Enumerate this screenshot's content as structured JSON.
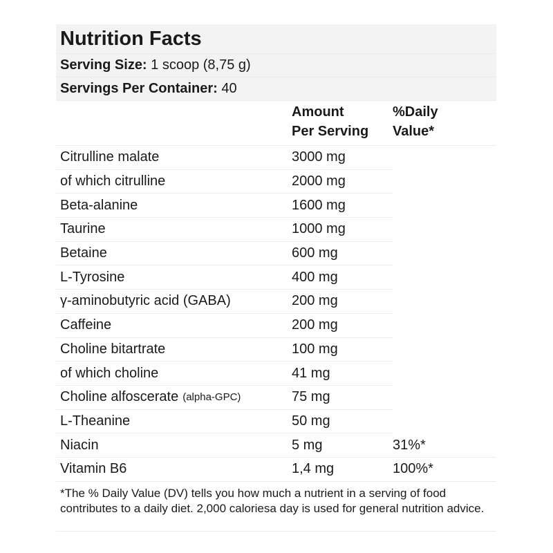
{
  "title": "Nutrition Facts",
  "serving_size": {
    "label": "Serving Size:",
    "value": " 1 scoop (8,75 g)"
  },
  "servings_per_container": {
    "label": "Servings Per Container:",
    "value": " 40"
  },
  "columns": {
    "amount_line1": "Amount",
    "amount_line2": "Per Serving",
    "dv_line1": "%Daily",
    "dv_line2": "Value*"
  },
  "rows": [
    {
      "name": "Citrulline malate",
      "amount": "3000 mg",
      "dv": ""
    },
    {
      "name": "of which citrulline",
      "amount": "2000 mg",
      "dv": ""
    },
    {
      "name": "Beta-alanine",
      "amount": "1600 mg",
      "dv": ""
    },
    {
      "name": "Taurine",
      "amount": "1000 mg",
      "dv": ""
    },
    {
      "name": "Betaine",
      "amount": "600 mg",
      "dv": ""
    },
    {
      "name": "L-Tyrosine",
      "amount": "400 mg",
      "dv": ""
    },
    {
      "name": "γ-aminobutyric acid (GABA)",
      "amount": "200 mg",
      "dv": ""
    },
    {
      "name": "Caffeine",
      "amount": "200 mg",
      "dv": ""
    },
    {
      "name": "Choline bitartrate",
      "amount": "100 mg",
      "dv": ""
    },
    {
      "name": "of which choline",
      "amount": "41 mg",
      "dv": ""
    },
    {
      "name": "Choline alfoscerate",
      "note": "(alpha-GPC)",
      "amount": "75 mg",
      "dv": ""
    },
    {
      "name": "L-Theanine",
      "amount": "50 mg",
      "dv": ""
    },
    {
      "name": "Niacin",
      "amount": "5 mg",
      "dv": "31%*"
    },
    {
      "name": "Vitamin B6",
      "amount": "1,4 mg",
      "dv": "100%*"
    }
  ],
  "footnote": "*The % Daily Value (DV) tells you how much a nutrient in a serving of food contributes to a daily diet. 2,000 caloriesa day is used for general nutrition advice."
}
